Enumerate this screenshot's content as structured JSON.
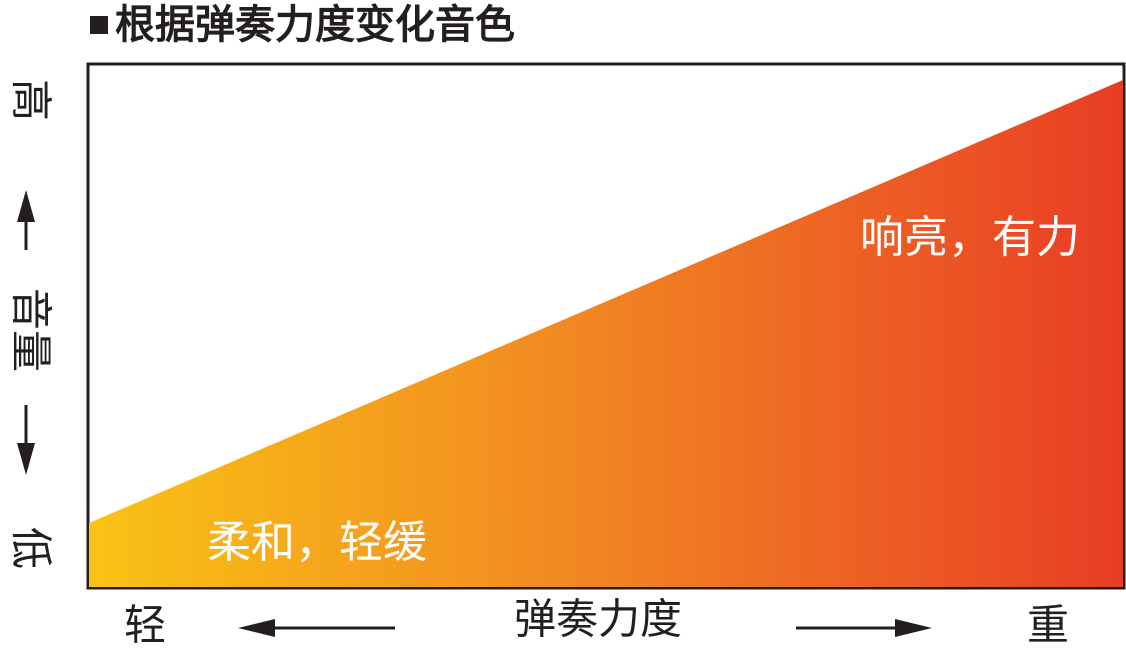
{
  "header": {
    "title": "根据弹奏力度变化音色"
  },
  "y_axis": {
    "high": "高",
    "label": "音量",
    "low": "低"
  },
  "x_axis": {
    "low": "轻",
    "label": "弹奏力度",
    "high": "重"
  },
  "regions": {
    "soft": "柔和，轻缓",
    "loud": "响亮，有力"
  }
}
